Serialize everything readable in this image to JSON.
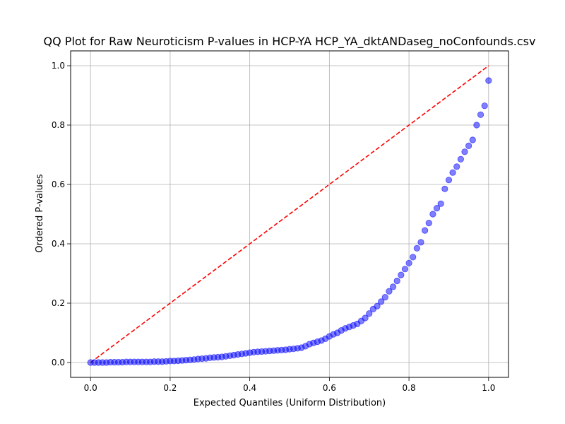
{
  "chart_data": {
    "type": "scatter",
    "title": "QQ Plot for Raw Neuroticism P-values in HCP-YA HCP_YA_dktANDaseg_noConfounds.csv",
    "xlabel": "Expected Quantiles (Uniform Distribution)",
    "ylabel": "Ordered P-values",
    "xlim": [
      -0.05,
      1.05
    ],
    "ylim": [
      -0.05,
      1.05
    ],
    "xticks": [
      0.0,
      0.2,
      0.4,
      0.6,
      0.8,
      1.0
    ],
    "xtick_labels": [
      "0.0",
      "0.2",
      "0.4",
      "0.6",
      "0.8",
      "1.0"
    ],
    "yticks": [
      0.0,
      0.2,
      0.4,
      0.6,
      0.8,
      1.0
    ],
    "ytick_labels": [
      "0.0",
      "0.2",
      "0.4",
      "0.6",
      "0.8",
      "1.0"
    ],
    "grid": true,
    "points_color": "#0000ff",
    "reference_line": {
      "x": [
        0,
        1
      ],
      "y": [
        0,
        1
      ],
      "color": "#ff0000",
      "style": "dashed"
    },
    "series": [
      {
        "x": [
          0.0,
          0.01,
          0.02,
          0.03,
          0.04,
          0.05,
          0.06,
          0.07,
          0.08,
          0.09,
          0.1,
          0.11,
          0.12,
          0.13,
          0.14,
          0.15,
          0.16,
          0.17,
          0.18,
          0.19,
          0.2,
          0.21,
          0.22,
          0.23,
          0.24,
          0.25,
          0.26,
          0.27,
          0.28,
          0.29,
          0.3,
          0.31,
          0.32,
          0.33,
          0.34,
          0.35,
          0.36,
          0.37,
          0.38,
          0.39,
          0.4,
          0.41,
          0.42,
          0.43,
          0.44,
          0.45,
          0.46,
          0.47,
          0.48,
          0.49,
          0.5,
          0.51,
          0.52,
          0.53,
          0.54,
          0.55,
          0.56,
          0.57,
          0.58,
          0.59,
          0.6,
          0.61,
          0.62,
          0.63,
          0.64,
          0.65,
          0.66,
          0.67,
          0.68,
          0.69,
          0.7,
          0.71,
          0.72,
          0.73,
          0.74,
          0.75,
          0.76,
          0.77,
          0.78,
          0.79,
          0.8,
          0.81,
          0.82,
          0.83,
          0.84,
          0.85,
          0.86,
          0.87,
          0.88,
          0.89,
          0.9,
          0.91,
          0.92,
          0.93,
          0.94,
          0.95,
          0.96,
          0.97,
          0.98,
          0.99,
          1.0
        ],
        "y": [
          0.0,
          0.0,
          0.0,
          0.0,
          0.0,
          0.001,
          0.001,
          0.001,
          0.001,
          0.002,
          0.002,
          0.002,
          0.002,
          0.002,
          0.002,
          0.002,
          0.003,
          0.003,
          0.003,
          0.004,
          0.005,
          0.005,
          0.006,
          0.007,
          0.008,
          0.009,
          0.01,
          0.012,
          0.013,
          0.014,
          0.016,
          0.017,
          0.018,
          0.019,
          0.021,
          0.023,
          0.025,
          0.027,
          0.029,
          0.031,
          0.033,
          0.035,
          0.036,
          0.037,
          0.038,
          0.039,
          0.04,
          0.041,
          0.042,
          0.043,
          0.045,
          0.046,
          0.048,
          0.05,
          0.055,
          0.062,
          0.066,
          0.07,
          0.074,
          0.08,
          0.088,
          0.095,
          0.1,
          0.108,
          0.115,
          0.12,
          0.125,
          0.13,
          0.14,
          0.15,
          0.165,
          0.18,
          0.19,
          0.205,
          0.22,
          0.24,
          0.255,
          0.275,
          0.295,
          0.315,
          0.335,
          0.355,
          0.385,
          0.405,
          0.445,
          0.47,
          0.5,
          0.52,
          0.535,
          0.585,
          0.615,
          0.64,
          0.66,
          0.685,
          0.71,
          0.73,
          0.75,
          0.8,
          0.835,
          0.865,
          0.95
        ]
      }
    ]
  }
}
